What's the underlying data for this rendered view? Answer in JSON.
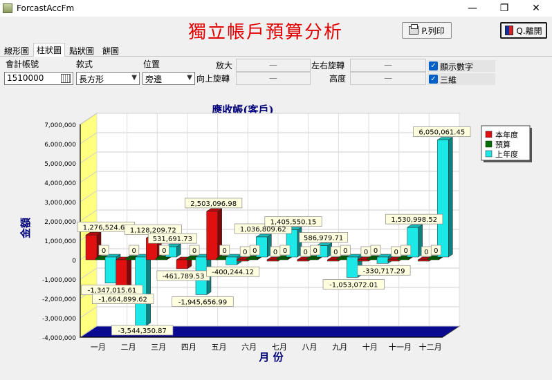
{
  "window": {
    "title": "ForcastAccFm",
    "minimize": "—",
    "maximize": "❐",
    "close": "✕"
  },
  "header": {
    "title": "獨立帳戶預算分析",
    "print_label": "P.列印",
    "exit_label": "Q.離開"
  },
  "tabs": [
    {
      "label": "線形圖"
    },
    {
      "label": "柱狀圖"
    },
    {
      "label": "點狀圖"
    },
    {
      "label": "餅圖"
    }
  ],
  "controls": {
    "account_label": "會計帳號",
    "account_value": "1510000",
    "style_label": "款式",
    "style_value": "長方形",
    "position_label": "位置",
    "position_value": "旁邊",
    "zoom_label": "放大",
    "zoom_value": "—",
    "rotate_up_label": "向上旋轉",
    "rotate_up_value": "—",
    "rotate_lr_label": "左右旋轉",
    "rotate_lr_value": "—",
    "height_label": "高度",
    "height_value": "—",
    "show_numbers_label": "顯示數字",
    "show_numbers_checked": true,
    "three_d_label": "三維",
    "three_d_checked": true
  },
  "colors": {
    "current_year": "#e01010",
    "budget": "#007000",
    "last_year": "#1ce8e8",
    "title_red": "#e00000",
    "chart_text": "#00007a"
  },
  "chart_data": {
    "type": "bar",
    "title": "應收帳(客戶)",
    "xlabel": "月 份",
    "ylabel": "金額",
    "ylim": [
      -4000000,
      7000000
    ],
    "yticks": [
      "7,000,000",
      "6,000,000",
      "5,000,000",
      "4,000,000",
      "3,000,000",
      "2,000,000",
      "1,000,000",
      "0",
      "-1,000,000",
      "-2,000,000",
      "-3,000,000",
      "-4,000,000"
    ],
    "categories": [
      "一月",
      "二月",
      "三月",
      "四月",
      "五月",
      "六月",
      "七月",
      "八月",
      "九月",
      "十月",
      "十一月",
      "十二月"
    ],
    "legend_position": "top-right",
    "three_d": true,
    "series": [
      {
        "name": "本年度",
        "color": "#e01010",
        "values": [
          1276524.61,
          -1664899.62,
          1128209.72,
          -461789.53,
          2503096.98,
          0,
          0,
          0,
          0,
          0,
          0,
          0
        ],
        "labels": [
          "1,276,524.61",
          "-1,664,899.62",
          "1,128,209.72",
          "-461,789.53",
          "2,503,096.98",
          "0",
          "0",
          "0",
          "0",
          "0",
          "0",
          "0"
        ]
      },
      {
        "name": "預算",
        "color": "#007000",
        "values": [
          0,
          0,
          0,
          0,
          0,
          0,
          0,
          0,
          0,
          0,
          0,
          0
        ],
        "labels": [
          "0",
          "0",
          "0",
          "0",
          "0",
          "0",
          "0",
          "0",
          "0",
          "0",
          "0",
          "0"
        ]
      },
      {
        "name": "上年度",
        "color": "#1ce8e8",
        "values": [
          -1347015.61,
          -3544350.87,
          531691.73,
          -1945656.99,
          -400244.12,
          1036809.62,
          1405550.15,
          586979.71,
          -1053072.01,
          -330717.29,
          1530998.52,
          6050061.45
        ],
        "labels": [
          "-1,347,015.61",
          "-3,544,350.87",
          "531,691.73",
          "-1,945,656.99",
          "-400,244.12",
          "1,036,809.62",
          "1,405,550.15",
          "586,979.71",
          "-1,053,072.01",
          "-330,717.29",
          "1,530,998.52",
          "6,050,061.45"
        ]
      }
    ]
  }
}
